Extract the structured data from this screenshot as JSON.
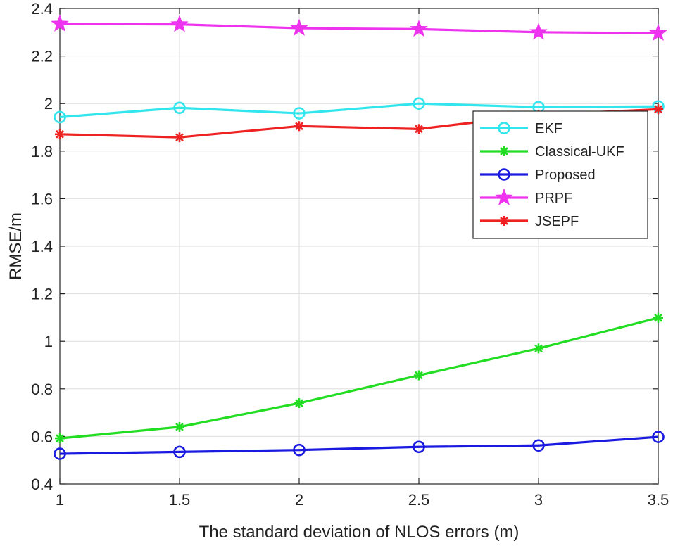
{
  "chart_data": {
    "type": "line",
    "title": "",
    "xlabel": "The standard deviation of NLOS errors (m)",
    "ylabel": "RMSE/m",
    "x": [
      1,
      1.5,
      2,
      2.5,
      3,
      3.5
    ],
    "xlim": [
      1,
      3.5
    ],
    "ylim": [
      0.4,
      2.4
    ],
    "xticks": [
      1,
      1.5,
      2,
      2.5,
      3,
      3.5
    ],
    "xtick_labels": [
      "1",
      "1.5",
      "2",
      "2.5",
      "3",
      "3.5"
    ],
    "yticks": [
      0.4,
      0.6,
      0.8,
      1.0,
      1.2,
      1.4,
      1.6,
      1.8,
      2.0,
      2.2,
      2.4
    ],
    "ytick_labels": [
      "0.4",
      "0.6",
      "0.8",
      "1",
      "1.2",
      "1.4",
      "1.6",
      "1.8",
      "2",
      "2.2",
      "2.4"
    ],
    "grid": true,
    "legend_position": "right",
    "series": [
      {
        "name": "EKF",
        "color": "#33e6ee",
        "marker": "circle",
        "values": [
          1.943,
          1.982,
          1.959,
          2.0,
          1.985,
          1.988
        ]
      },
      {
        "name": "Classical-UKF",
        "color": "#22dd22",
        "marker": "asterisk",
        "values": [
          0.592,
          0.64,
          0.74,
          0.857,
          0.97,
          1.099
        ]
      },
      {
        "name": "Proposed",
        "color": "#1a1ae0",
        "marker": "circle",
        "values": [
          0.527,
          0.535,
          0.543,
          0.556,
          0.562,
          0.598
        ]
      },
      {
        "name": "PRPF",
        "color": "#ee33ee",
        "marker": "star",
        "values": [
          2.335,
          2.333,
          2.317,
          2.313,
          2.3,
          2.296
        ]
      },
      {
        "name": "JSEPF",
        "color": "#ee2222",
        "marker": "asterisk",
        "values": [
          1.871,
          1.858,
          1.905,
          1.893,
          1.953,
          1.976
        ]
      }
    ]
  }
}
